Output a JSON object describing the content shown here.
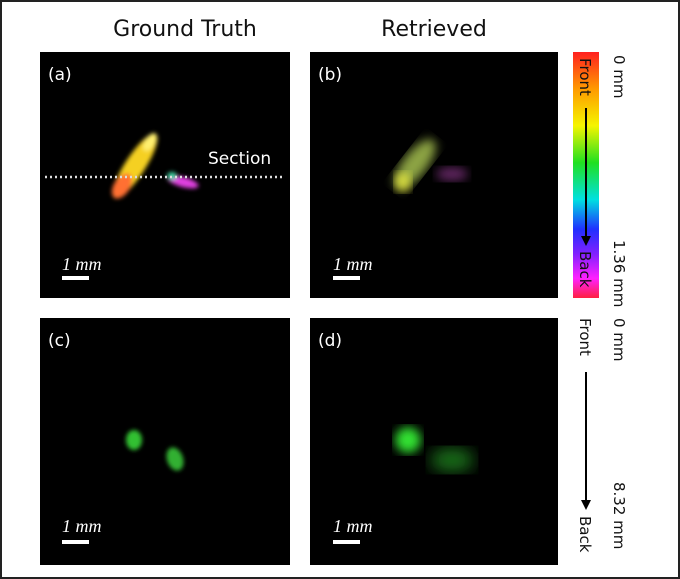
{
  "headers": [
    "Ground Truth",
    "Retrieved"
  ],
  "panels": [
    {
      "label": "(a)",
      "scale": "1 mm"
    },
    {
      "label": "(b)",
      "scale": "1 mm"
    },
    {
      "label": "(c)",
      "scale": "1 mm"
    },
    {
      "label": "(d)",
      "scale": "1 mm"
    }
  ],
  "annotation": "Section",
  "depth_bars": [
    {
      "front": "Front",
      "back": "Back",
      "top": "0 mm",
      "bottom": "1.36 mm"
    },
    {
      "front": "Front",
      "back": "Back",
      "top": "0 mm",
      "bottom": "8.32 mm"
    }
  ]
}
